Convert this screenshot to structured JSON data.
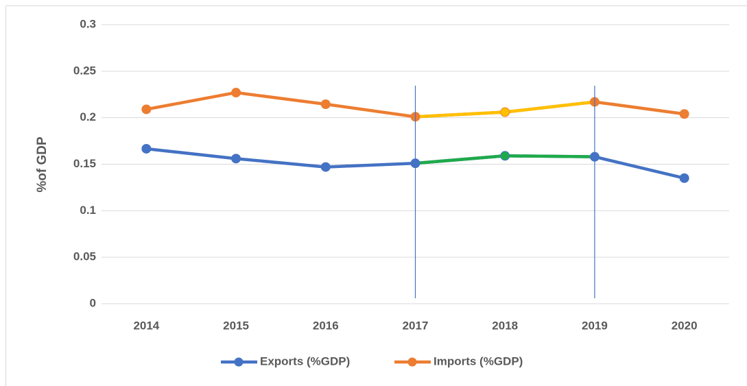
{
  "chart_data": {
    "type": "line",
    "ylabel": "%of GDP",
    "categories": [
      "2014",
      "2015",
      "2016",
      "2017",
      "2018",
      "2019",
      "2020"
    ],
    "series": [
      {
        "name": "Exports (%GDP)",
        "color": "#4472c4",
        "highlight_color": "#1faa4a",
        "values": [
          0.1666,
          0.156,
          0.147,
          0.151,
          0.159,
          0.158,
          0.135
        ]
      },
      {
        "name": "Imports (%GDP)",
        "color": "#ed7d31",
        "highlight_color": "#ffc000",
        "values": [
          0.209,
          0.227,
          0.2145,
          0.201,
          0.206,
          0.217,
          0.204
        ]
      }
    ],
    "highlight": [
      "2017",
      "2019"
    ],
    "ylim": [
      0,
      0.3
    ],
    "yticks": [
      0,
      0.05,
      0.1,
      0.15,
      0.2,
      0.25,
      0.3
    ],
    "grid": true,
    "legend": "bottom"
  }
}
